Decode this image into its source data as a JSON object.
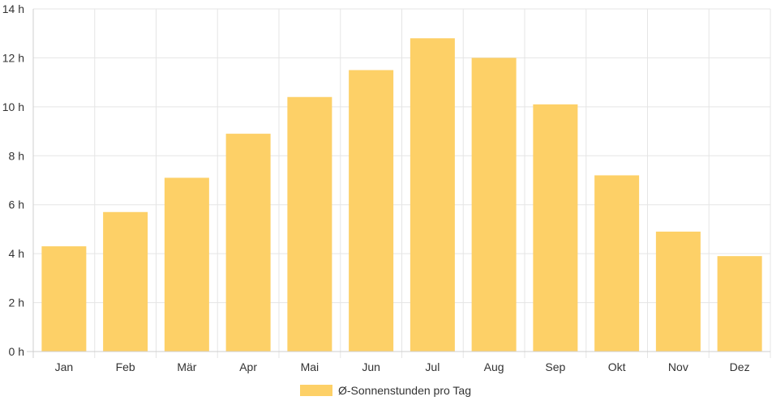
{
  "chart_data": {
    "type": "bar",
    "categories": [
      "Jan",
      "Feb",
      "Mär",
      "Apr",
      "Mai",
      "Jun",
      "Jul",
      "Aug",
      "Sep",
      "Okt",
      "Nov",
      "Dez"
    ],
    "series": [
      {
        "name": "Ø-Sonnenstunden pro Tag",
        "values": [
          4.3,
          5.7,
          7.1,
          8.9,
          10.4,
          11.5,
          12.8,
          12.0,
          10.1,
          7.2,
          4.9,
          3.9
        ],
        "color": "#fdd067"
      }
    ],
    "y_ticks": [
      "0 h",
      "2 h",
      "4 h",
      "6 h",
      "8 h",
      "10 h",
      "12 h",
      "14 h"
    ],
    "ylim": [
      0,
      14
    ],
    "grid": true,
    "legend_position": "bottom"
  }
}
